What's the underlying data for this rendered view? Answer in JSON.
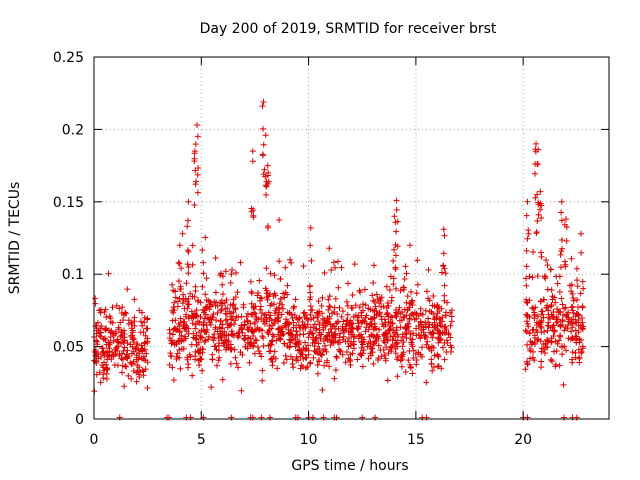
{
  "chart_data": {
    "type": "scatter",
    "title": "Day 200 of 2019, SRMTID for receiver brst",
    "xlabel": "GPS time / hours",
    "ylabel": "SRMTID / TECUs",
    "xlim": [
      0,
      24
    ],
    "ylim": [
      0,
      0.25
    ],
    "x_ticks": [
      0,
      5,
      10,
      15,
      20
    ],
    "x_tick_labels": [
      "0",
      "5",
      "10",
      "15",
      "20"
    ],
    "y_ticks": [
      0,
      0.05,
      0.1,
      0.15,
      0.2,
      0.25
    ],
    "y_tick_labels": [
      "0",
      "0.05",
      "0.1",
      "0.15",
      "0.2",
      "0.25"
    ],
    "grid": true,
    "marker": "+",
    "color": "#dd0000",
    "series": [
      {
        "name": "SRMTID",
        "segments": [
          {
            "x_start": 0.0,
            "x_end": 2.5,
            "baseline": 0.05,
            "spread": 0.02
          },
          {
            "x_start": 3.5,
            "x_end": 9.0,
            "baseline": 0.065,
            "spread": 0.025
          },
          {
            "x_start": 9.0,
            "x_end": 13.0,
            "baseline": 0.058,
            "spread": 0.02
          },
          {
            "x_start": 13.0,
            "x_end": 16.7,
            "baseline": 0.062,
            "spread": 0.022
          },
          {
            "x_start": 20.1,
            "x_end": 22.8,
            "baseline": 0.065,
            "spread": 0.025
          }
        ],
        "peaks": [
          {
            "x": 4.0,
            "y": 0.12
          },
          {
            "x": 4.4,
            "y": 0.15
          },
          {
            "x": 4.7,
            "y": 0.185
          },
          {
            "x": 4.8,
            "y": 0.203
          },
          {
            "x": 7.4,
            "y": 0.185
          },
          {
            "x": 7.9,
            "y": 0.219
          },
          {
            "x": 8.0,
            "y": 0.196
          },
          {
            "x": 8.1,
            "y": 0.175
          },
          {
            "x": 10.1,
            "y": 0.132
          },
          {
            "x": 14.1,
            "y": 0.151
          },
          {
            "x": 14.0,
            "y": 0.14
          },
          {
            "x": 16.3,
            "y": 0.131
          },
          {
            "x": 20.2,
            "y": 0.15
          },
          {
            "x": 20.6,
            "y": 0.19
          },
          {
            "x": 20.7,
            "y": 0.186
          },
          {
            "x": 20.8,
            "y": 0.157
          },
          {
            "x": 21.8,
            "y": 0.15
          },
          {
            "x": 22.0,
            "y": 0.138
          }
        ],
        "zero_points": [
          1.2,
          3.4,
          3.5,
          4.3,
          4.5,
          5.1,
          6.4,
          7.3,
          7.4,
          7.8,
          8.2,
          9.4,
          9.5,
          10.0,
          10.2,
          10.7,
          11.2,
          11.3,
          12.5,
          13.1,
          15.3,
          15.5,
          20.0,
          20.2,
          21.9,
          22.3,
          22.5
        ]
      }
    ]
  }
}
